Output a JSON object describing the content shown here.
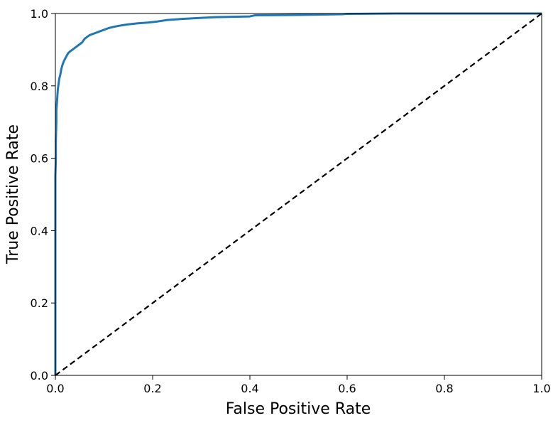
{
  "chart_data": {
    "type": "line",
    "title": "",
    "xlabel": "False Positive Rate",
    "ylabel": "True Positive Rate",
    "xlim": [
      0.0,
      1.0
    ],
    "ylim": [
      0.0,
      1.0
    ],
    "xticks": [
      "0.0",
      "0.2",
      "0.4",
      "0.6",
      "0.8",
      "1.0"
    ],
    "yticks": [
      "0.0",
      "0.2",
      "0.4",
      "0.6",
      "0.8",
      "1.0"
    ],
    "grid": false,
    "legend": "none",
    "colors": {
      "roc": "#1f77b4",
      "diagonal": "#000000"
    },
    "series": [
      {
        "style": "solid",
        "x": [
          0.0,
          0.0,
          0.001,
          0.001,
          0.002,
          0.002,
          0.003,
          0.004,
          0.005,
          0.006,
          0.008,
          0.01,
          0.012,
          0.015,
          0.018,
          0.022,
          0.026,
          0.03,
          0.035,
          0.04,
          0.045,
          0.05,
          0.055,
          0.06,
          0.065,
          0.07,
          0.08,
          0.09,
          0.1,
          0.11,
          0.12,
          0.13,
          0.14,
          0.15,
          0.17,
          0.19,
          0.21,
          0.23,
          0.26,
          0.3,
          0.33,
          0.4,
          0.41,
          0.5,
          0.59,
          0.6,
          0.7,
          0.8,
          0.9,
          1.0
        ],
        "y": [
          0.0,
          0.55,
          0.6,
          0.65,
          0.7,
          0.73,
          0.75,
          0.77,
          0.79,
          0.8,
          0.82,
          0.83,
          0.845,
          0.86,
          0.87,
          0.88,
          0.89,
          0.895,
          0.9,
          0.905,
          0.91,
          0.915,
          0.92,
          0.93,
          0.935,
          0.94,
          0.945,
          0.95,
          0.955,
          0.96,
          0.963,
          0.966,
          0.968,
          0.97,
          0.973,
          0.975,
          0.978,
          0.982,
          0.985,
          0.988,
          0.99,
          0.992,
          0.995,
          0.996,
          0.998,
          0.999,
          1.0,
          1.0,
          1.0,
          1.0
        ]
      },
      {
        "style": "dashed",
        "x": [
          0.0,
          1.0
        ],
        "y": [
          0.0,
          1.0
        ]
      }
    ]
  }
}
